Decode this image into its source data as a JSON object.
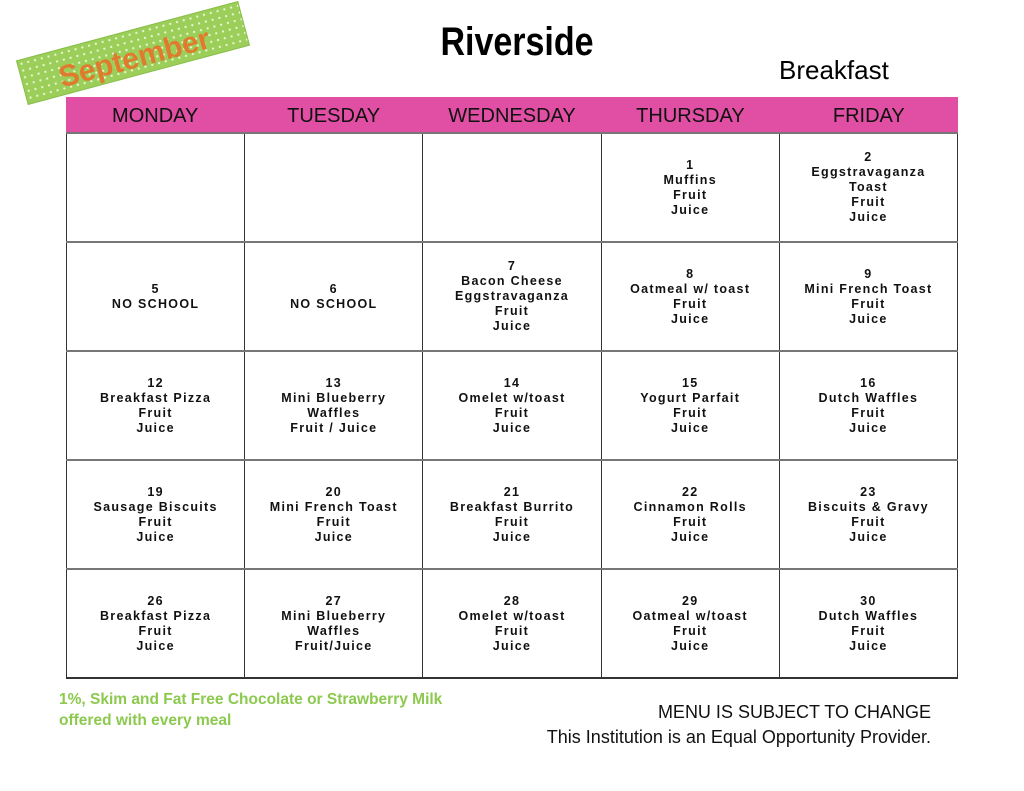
{
  "month": "September",
  "school": "Riverside",
  "meal": "Breakfast",
  "colors": {
    "header": "#e04fa3",
    "banner": "#9ccf5a",
    "month_text": "#e07a2e",
    "milk_text": "#8cc94e"
  },
  "days": [
    "MONDAY",
    "TUESDAY",
    "WEDNESDAY",
    "THURSDAY",
    "FRIDAY"
  ],
  "weeks": [
    [
      [],
      [],
      [],
      [
        "1",
        "Muffins",
        "Fruit",
        "Juice"
      ],
      [
        "2",
        "Eggstravaganza",
        "Toast",
        "Fruit",
        "Juice"
      ]
    ],
    [
      [
        "5",
        "NO SCHOOL"
      ],
      [
        "6",
        "NO SCHOOL"
      ],
      [
        "7",
        "Bacon Cheese",
        "Eggstravaganza",
        "Fruit",
        "Juice"
      ],
      [
        "8",
        "Oatmeal w/ toast",
        "Fruit",
        "Juice"
      ],
      [
        "9",
        "Mini French Toast",
        "Fruit",
        "Juice"
      ]
    ],
    [
      [
        "12",
        "Breakfast Pizza",
        "Fruit",
        "Juice"
      ],
      [
        "13",
        "Mini Blueberry",
        "Waffles",
        "Fruit / Juice"
      ],
      [
        "14",
        "Omelet w/toast",
        "Fruit",
        "Juice"
      ],
      [
        "15",
        "Yogurt Parfait",
        "Fruit",
        "Juice"
      ],
      [
        "16",
        "Dutch Waffles",
        "Fruit",
        "Juice"
      ]
    ],
    [
      [
        "19",
        "Sausage Biscuits",
        "Fruit",
        "Juice"
      ],
      [
        "20",
        "Mini French Toast",
        "Fruit",
        "Juice"
      ],
      [
        "21",
        "Breakfast Burrito",
        "Fruit",
        "Juice"
      ],
      [
        "22",
        "Cinnamon Rolls",
        "Fruit",
        "Juice"
      ],
      [
        "23",
        "Biscuits & Gravy",
        "Fruit",
        "Juice"
      ]
    ],
    [
      [
        "26",
        "Breakfast Pizza",
        "Fruit",
        "Juice"
      ],
      [
        "27",
        "Mini Blueberry",
        "Waffles",
        "Fruit/Juice"
      ],
      [
        "28",
        "Omelet w/toast",
        "Fruit",
        "Juice"
      ],
      [
        "29",
        "Oatmeal w/toast",
        "Fruit",
        "Juice"
      ],
      [
        "30",
        "Dutch Waffles",
        "Fruit",
        "Juice"
      ]
    ]
  ],
  "milk_note": [
    "1%, Skim and Fat Free Chocolate or Strawberry Milk",
    "offered with every meal"
  ],
  "notice": [
    "MENU IS SUBJECT TO CHANGE",
    "This Institution is an Equal Opportunity Provider."
  ]
}
